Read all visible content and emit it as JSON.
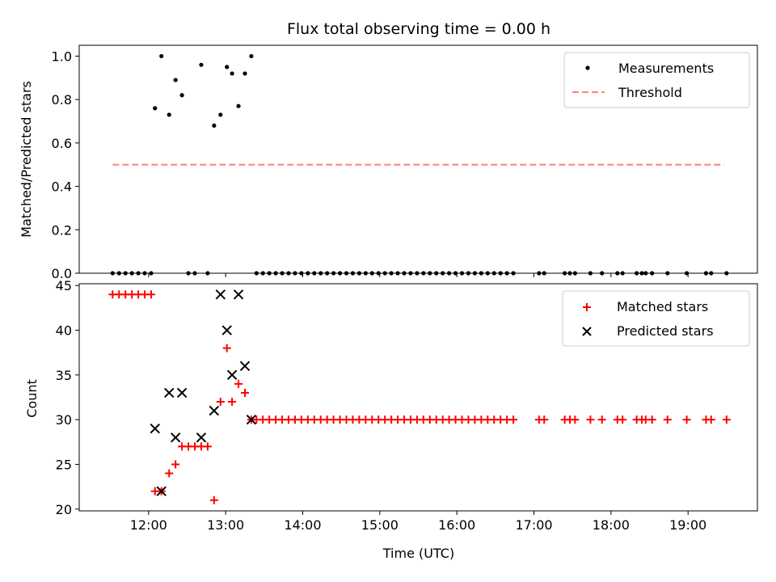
{
  "chart_data": [
    {
      "type": "scatter",
      "title": "Flux total observing time = 0.00 h",
      "xlabel": "",
      "ylabel": "Matched/Predicted stars",
      "ylim": [
        0,
        1.05
      ],
      "yticks": [
        "0.0",
        "0.2",
        "0.4",
        "0.6",
        "0.8",
        "1.0"
      ],
      "xlim_hours": [
        11.1,
        19.9
      ],
      "legend_position": "top-right",
      "series": [
        {
          "name": "Measurements",
          "style": "dot",
          "color": "#000000",
          "x": [
            "11:32",
            "11:37",
            "11:42",
            "11:47",
            "11:52",
            "11:57",
            "12:02",
            "12:05",
            "12:10",
            "12:16",
            "12:21",
            "12:26",
            "12:31",
            "12:36",
            "12:41",
            "12:46",
            "12:51",
            "12:56",
            "13:01",
            "13:05",
            "13:10",
            "13:15",
            "13:20",
            "13:24",
            "13:29",
            "13:34",
            "13:39",
            "13:44",
            "13:49",
            "13:54",
            "13:59",
            "14:04",
            "14:09",
            "14:14",
            "14:19",
            "14:24",
            "14:29",
            "14:34",
            "14:39",
            "14:44",
            "14:49",
            "14:54",
            "14:59",
            "15:04",
            "15:09",
            "15:14",
            "15:19",
            "15:24",
            "15:29",
            "15:34",
            "15:39",
            "15:44",
            "15:49",
            "15:54",
            "15:59",
            "16:04",
            "16:09",
            "16:14",
            "16:19",
            "16:24",
            "16:29",
            "16:34",
            "16:39",
            "16:44",
            "17:04",
            "17:08",
            "17:24",
            "17:28",
            "17:32",
            "17:44",
            "17:53",
            "18:05",
            "18:09",
            "18:20",
            "18:24",
            "18:27",
            "18:32",
            "18:44",
            "18:59",
            "19:14",
            "19:18",
            "19:30"
          ],
          "y": [
            0,
            0,
            0,
            0,
            0,
            0,
            0,
            0.76,
            1.0,
            0.73,
            0.89,
            0.82,
            0,
            0,
            0.96,
            0,
            0.68,
            0.73,
            0.95,
            0.92,
            0.77,
            0.92,
            1.0,
            0,
            0,
            0,
            0,
            0,
            0,
            0,
            0,
            0,
            0,
            0,
            0,
            0,
            0,
            0,
            0,
            0,
            0,
            0,
            0,
            0,
            0,
            0,
            0,
            0,
            0,
            0,
            0,
            0,
            0,
            0,
            0,
            0,
            0,
            0,
            0,
            0,
            0,
            0,
            0,
            0,
            0,
            0,
            0,
            0,
            0,
            0,
            0,
            0,
            0,
            0,
            0,
            0,
            0,
            0,
            0,
            0,
            0,
            0
          ]
        },
        {
          "name": "Threshold",
          "style": "dashed",
          "color": "#ff7f7f",
          "x": [
            "11:32",
            "19:28"
          ],
          "y": [
            0.5,
            0.5
          ]
        }
      ]
    },
    {
      "type": "scatter",
      "title": "",
      "xlabel": "Time (UTC)",
      "ylabel": "Count",
      "ylim": [
        19.8,
        45.2
      ],
      "yticks": [
        "20",
        "25",
        "30",
        "35",
        "40",
        "45"
      ],
      "xlim_hours": [
        11.1,
        19.9
      ],
      "xticks": [
        "12:00",
        "13:00",
        "14:00",
        "15:00",
        "16:00",
        "17:00",
        "18:00",
        "19:00"
      ],
      "legend_position": "top-right",
      "series": [
        {
          "name": "Matched stars",
          "style": "plus",
          "color": "#ff0000",
          "x": [
            "11:32",
            "11:37",
            "11:42",
            "11:47",
            "11:52",
            "11:57",
            "12:02",
            "12:05",
            "12:10",
            "12:16",
            "12:21",
            "12:26",
            "12:31",
            "12:36",
            "12:41",
            "12:46",
            "12:51",
            "12:56",
            "13:01",
            "13:05",
            "13:10",
            "13:15",
            "13:20",
            "13:24",
            "13:29",
            "13:34",
            "13:39",
            "13:44",
            "13:49",
            "13:54",
            "13:59",
            "14:04",
            "14:09",
            "14:14",
            "14:19",
            "14:24",
            "14:29",
            "14:34",
            "14:39",
            "14:44",
            "14:49",
            "14:54",
            "14:59",
            "15:04",
            "15:09",
            "15:14",
            "15:19",
            "15:24",
            "15:29",
            "15:34",
            "15:39",
            "15:44",
            "15:49",
            "15:54",
            "15:59",
            "16:04",
            "16:09",
            "16:14",
            "16:19",
            "16:24",
            "16:29",
            "16:34",
            "16:39",
            "16:44",
            "17:04",
            "17:08",
            "17:24",
            "17:28",
            "17:32",
            "17:44",
            "17:53",
            "18:05",
            "18:09",
            "18:20",
            "18:24",
            "18:27",
            "18:32",
            "18:44",
            "18:59",
            "19:14",
            "19:18",
            "19:30"
          ],
          "y": [
            44,
            44,
            44,
            44,
            44,
            44,
            44,
            22,
            22,
            24,
            25,
            27,
            27,
            27,
            27,
            27,
            21,
            32,
            38,
            32,
            34,
            33,
            30,
            30,
            30,
            30,
            30,
            30,
            30,
            30,
            30,
            30,
            30,
            30,
            30,
            30,
            30,
            30,
            30,
            30,
            30,
            30,
            30,
            30,
            30,
            30,
            30,
            30,
            30,
            30,
            30,
            30,
            30,
            30,
            30,
            30,
            30,
            30,
            30,
            30,
            30,
            30,
            30,
            30,
            30,
            30,
            30,
            30,
            30,
            30,
            30,
            30,
            30,
            30,
            30,
            30,
            30,
            30,
            30,
            30,
            30,
            30
          ]
        },
        {
          "name": "Predicted stars",
          "style": "x",
          "color": "#000000",
          "x": [
            "12:05",
            "12:10",
            "12:16",
            "12:21",
            "12:26",
            "12:41",
            "12:51",
            "12:56",
            "13:01",
            "13:05",
            "13:10",
            "13:15",
            "13:20"
          ],
          "y": [
            29,
            22,
            33,
            28,
            33,
            28,
            31,
            44,
            40,
            35,
            44,
            36,
            30
          ]
        }
      ]
    }
  ]
}
